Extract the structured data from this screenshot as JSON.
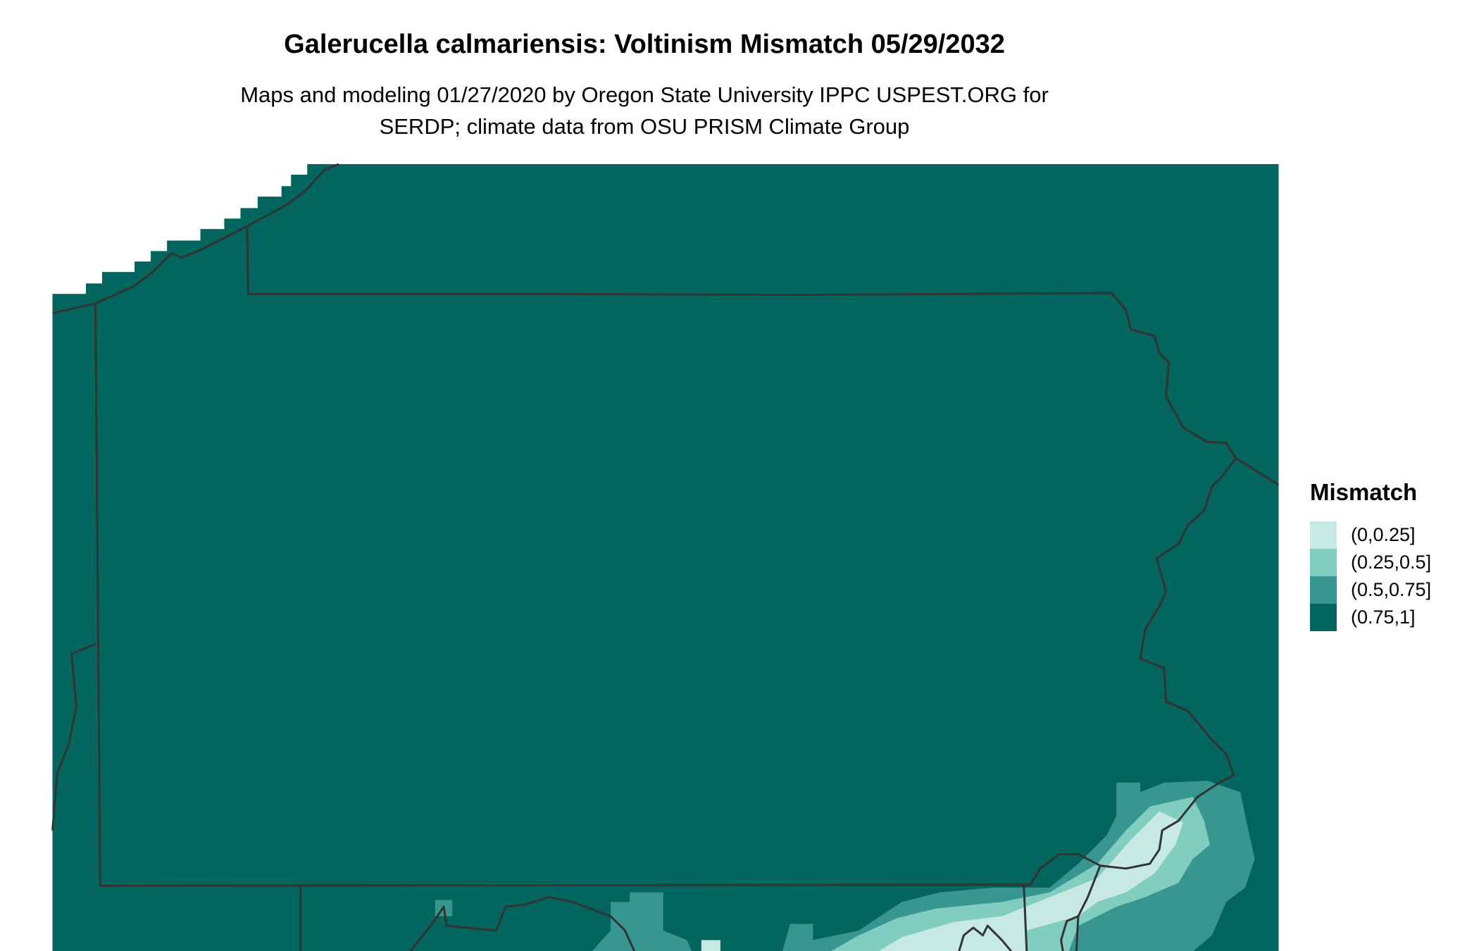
{
  "title": "Galerucella calmariensis: Voltinism Mismatch 05/29/2032",
  "subtitle_lines": [
    "Maps and modeling 01/27/2020 by Oregon State University IPPC USPEST.ORG for",
    "SERDP; climate data from OSU PRISM Climate Group"
  ],
  "legend": {
    "title": "Mismatch",
    "items": [
      {
        "label": "(0,0.25]",
        "color": "#C6E9E3"
      },
      {
        "label": "(0.25,0.5]",
        "color": "#81CDBF"
      },
      {
        "label": "(0.5,0.75]",
        "color": "#379690"
      },
      {
        "label": "(0.75,1]",
        "color": "#02665E"
      }
    ]
  },
  "colors": {
    "border": "#333333",
    "background": "#ffffff"
  }
}
